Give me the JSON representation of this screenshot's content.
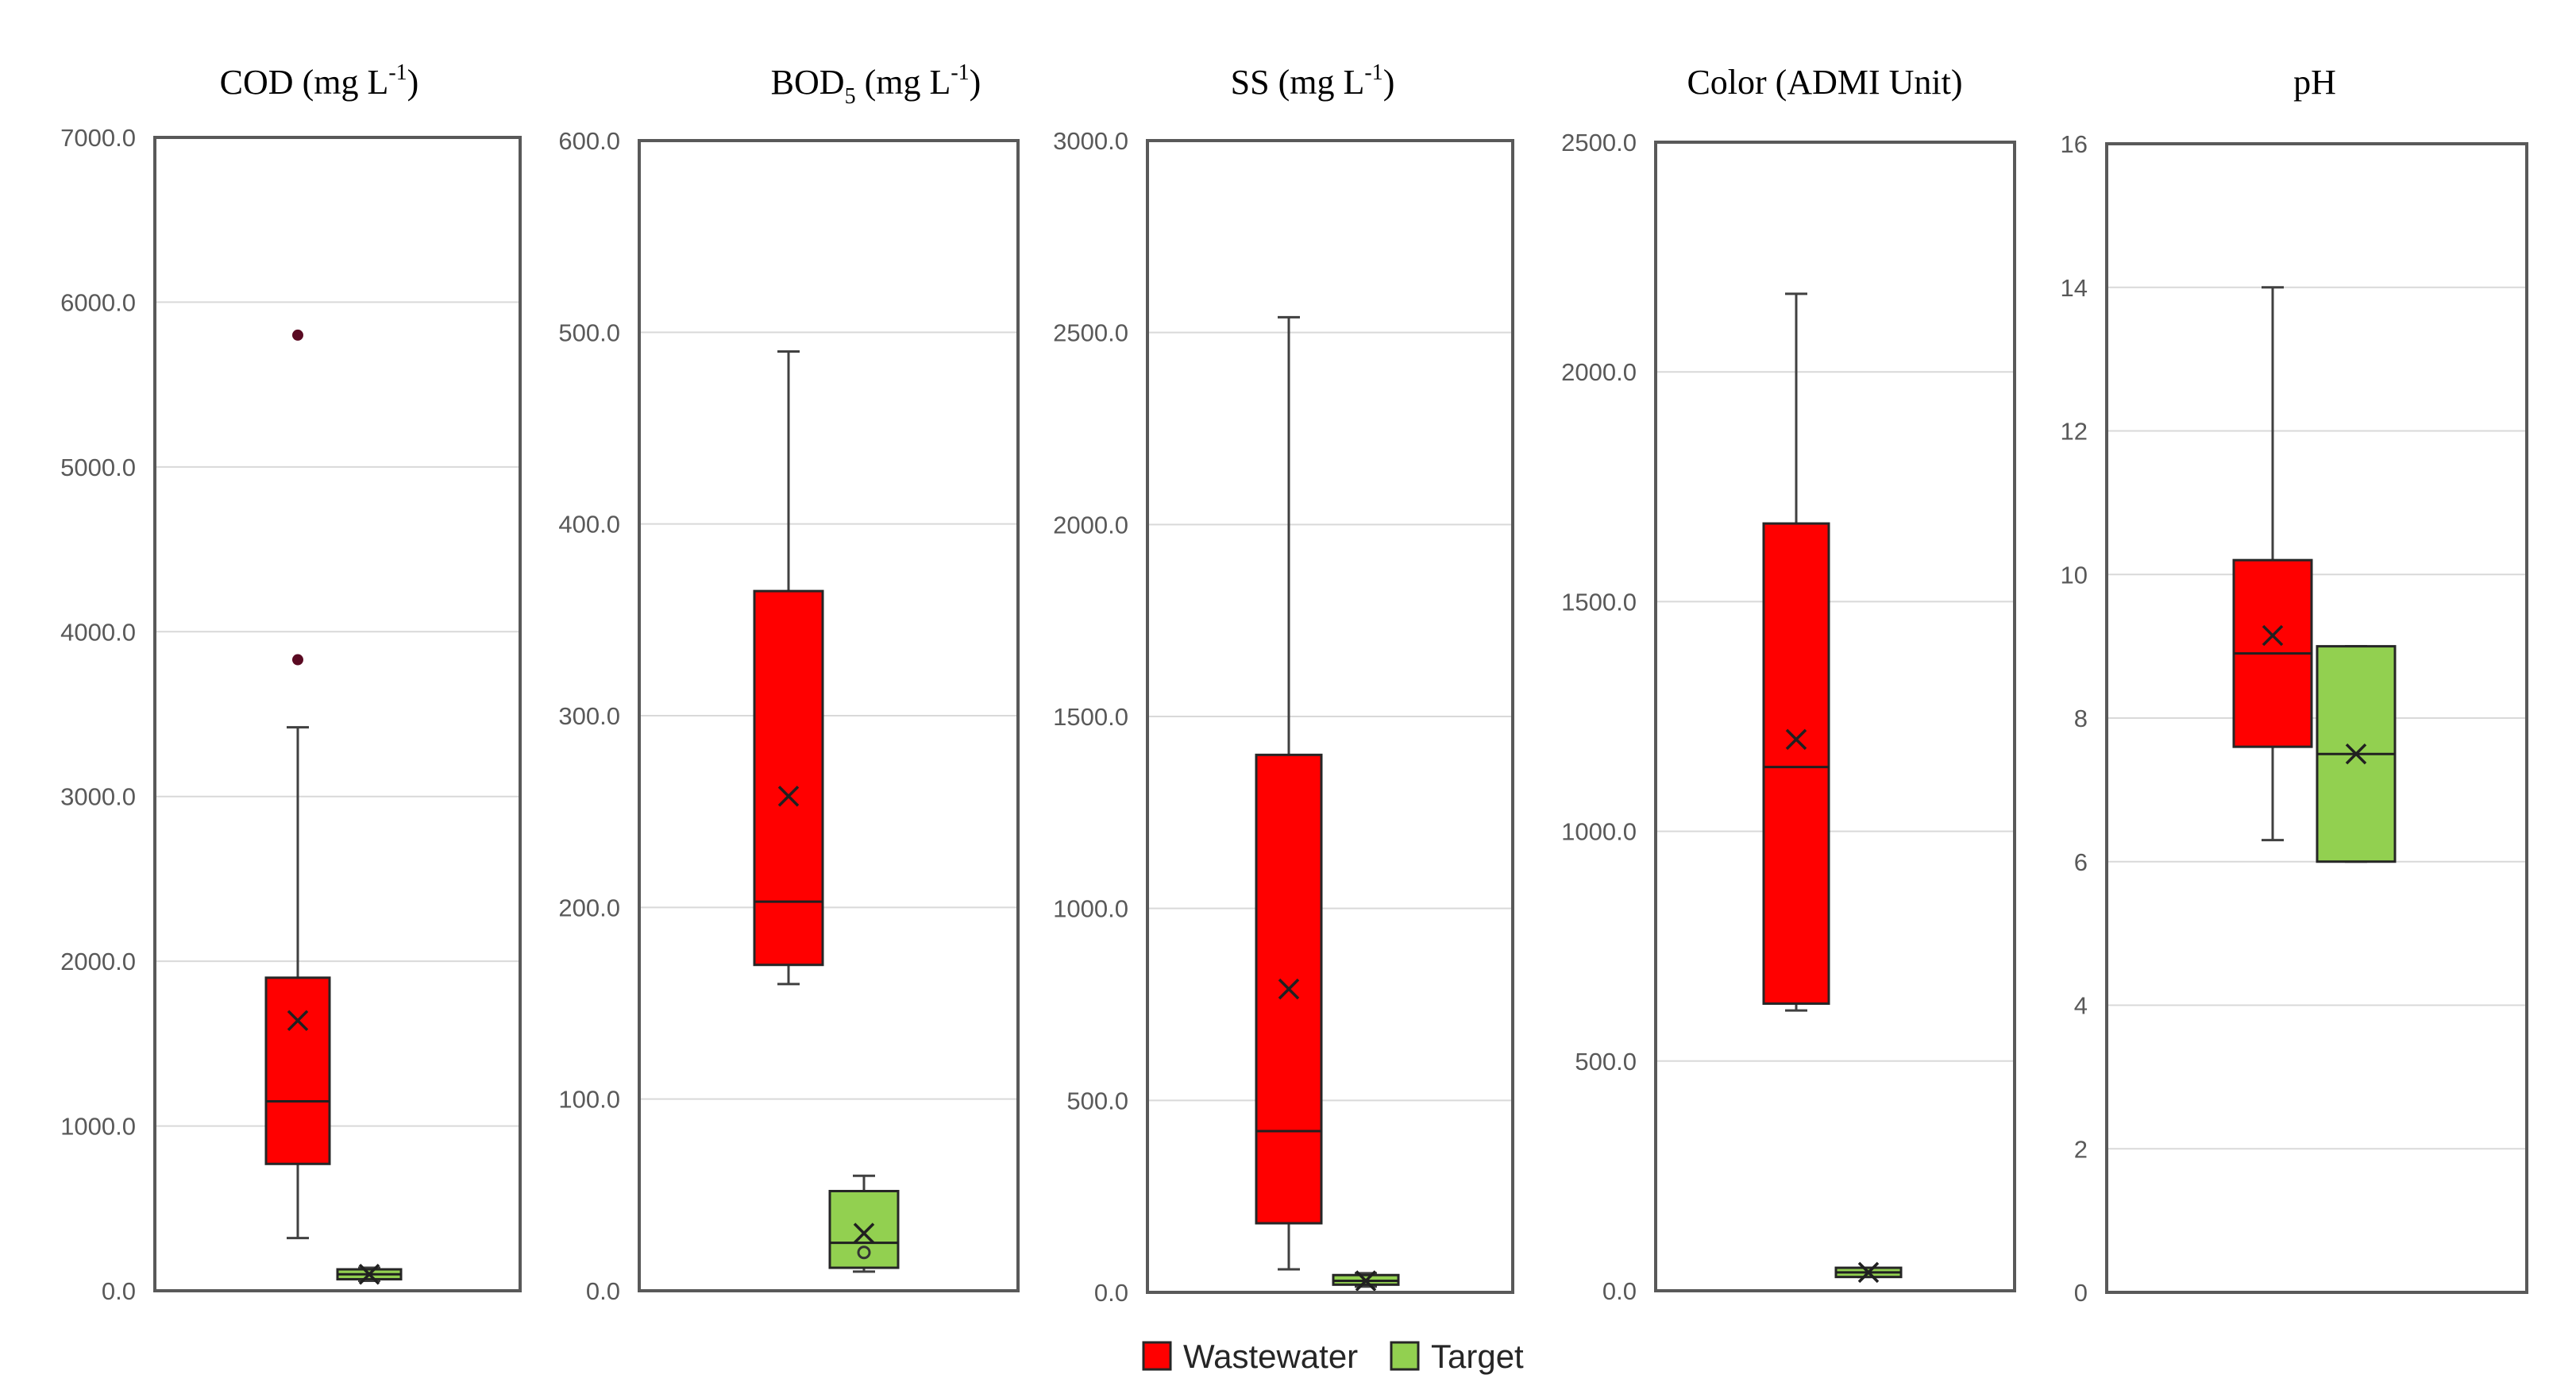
{
  "chart_data": [
    {
      "type": "box",
      "title": "COD (mg L-1)",
      "title_parts": {
        "main": "COD (mg L",
        "sup": "-1",
        "end": ")"
      },
      "ylim": [
        0,
        7000
      ],
      "yticks": [
        0,
        1000,
        2000,
        3000,
        4000,
        5000,
        6000,
        7000
      ],
      "ytick_labels": [
        "0.0",
        "1000.0",
        "2000.0",
        "3000.0",
        "4000.0",
        "5000.0",
        "6000.0",
        "7000.0"
      ],
      "grid": true,
      "series": [
        {
          "name": "Wastewater",
          "min": 320,
          "q1": 770,
          "median": 1150,
          "q3": 1900,
          "max": 3420,
          "mean": 1640,
          "outliers": [
            3830,
            5800
          ]
        },
        {
          "name": "Target",
          "min": 60,
          "q1": 70,
          "median": 100,
          "q3": 130,
          "max": 140,
          "mean": 100,
          "outliers": []
        }
      ]
    },
    {
      "type": "box",
      "title": "BOD5 (mg L-1)",
      "title_parts": {
        "main": "BOD",
        "sub": "5",
        "mid": "  (mg L",
        "sup": "-1",
        "end": ")"
      },
      "ylim": [
        0,
        600
      ],
      "yticks": [
        0,
        100,
        200,
        300,
        400,
        500,
        600
      ],
      "ytick_labels": [
        "0.0",
        "100.0",
        "200.0",
        "300.0",
        "400.0",
        "500.0",
        "600.0"
      ],
      "grid": true,
      "series": [
        {
          "name": "Wastewater",
          "min": 160,
          "q1": 170,
          "median": 203,
          "q3": 365,
          "max": 490,
          "mean": 258,
          "outliers": []
        },
        {
          "name": "Target",
          "min": 10,
          "q1": 12,
          "median": 25,
          "q3": 52,
          "max": 60,
          "mean": 30,
          "outliers": [
            20
          ]
        }
      ]
    },
    {
      "type": "box",
      "title": "SS (mg L-1)",
      "title_parts": {
        "main": "SS (mg L",
        "sup": "-1",
        "end": ")"
      },
      "ylim": [
        0,
        3000
      ],
      "yticks": [
        0,
        500,
        1000,
        1500,
        2000,
        2500,
        3000
      ],
      "ytick_labels": [
        "0.0",
        "500.0",
        "1000.0",
        "1500.0",
        "2000.0",
        "2500.0",
        "3000.0"
      ],
      "grid": true,
      "series": [
        {
          "name": "Wastewater",
          "min": 60,
          "q1": 180,
          "median": 420,
          "q3": 1400,
          "max": 2540,
          "mean": 790,
          "outliers": []
        },
        {
          "name": "Target",
          "min": 15,
          "q1": 20,
          "median": 30,
          "q3": 45,
          "max": 50,
          "mean": 30,
          "outliers": []
        }
      ]
    },
    {
      "type": "box",
      "title": "Color (ADMI Unit)",
      "title_parts": {
        "main": "Color (ADMI Unit)"
      },
      "ylim": [
        0,
        2500
      ],
      "yticks": [
        0,
        500,
        1000,
        1500,
        2000,
        2500
      ],
      "ytick_labels": [
        "0.0",
        "500.0",
        "1000.0",
        "1500.0",
        "2000.0",
        "2500.0"
      ],
      "grid": true,
      "series": [
        {
          "name": "Wastewater",
          "min": 610,
          "q1": 625,
          "median": 1140,
          "q3": 1670,
          "max": 2170,
          "mean": 1200,
          "outliers": []
        },
        {
          "name": "Target",
          "min": 30,
          "q1": 30,
          "median": 40,
          "q3": 50,
          "max": 50,
          "mean": 40,
          "outliers": []
        }
      ]
    },
    {
      "type": "box",
      "title": "pH",
      "title_parts": {
        "main": "pH"
      },
      "ylim": [
        0,
        16
      ],
      "yticks": [
        0,
        2,
        4,
        6,
        8,
        10,
        12,
        14,
        16
      ],
      "ytick_labels": [
        "0",
        "2",
        "4",
        "6",
        "8",
        "10",
        "12",
        "14",
        "16"
      ],
      "grid": true,
      "series": [
        {
          "name": "Wastewater",
          "min": 6.3,
          "q1": 7.6,
          "median": 8.9,
          "q3": 10.2,
          "max": 14,
          "mean": 9.15,
          "outliers": []
        },
        {
          "name": "Target",
          "min": 6,
          "q1": 6,
          "median": 7.5,
          "q3": 9,
          "max": 9,
          "mean": 7.5,
          "outliers": []
        }
      ]
    }
  ],
  "legend": {
    "placement": "bottom-center",
    "items": [
      {
        "label": "Wastewater",
        "color": "#ff0000"
      },
      {
        "label": "Target",
        "color": "#92d050"
      }
    ]
  },
  "colors": {
    "wastewater_fill": "#ff0000",
    "target_fill": "#92d050",
    "outlier": "#5a0a22"
  }
}
